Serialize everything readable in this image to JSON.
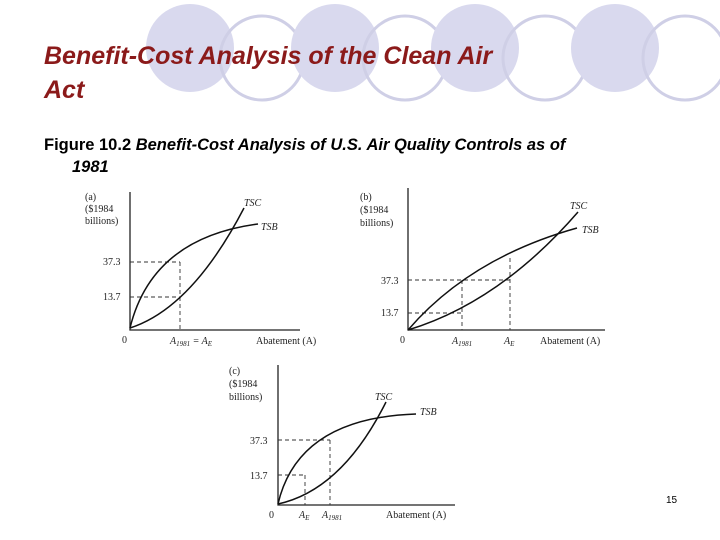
{
  "header": {
    "title": "Benefit-Cost Analysis of the Clean Air Act"
  },
  "figure": {
    "caption_number": "Figure 10.2",
    "caption": "Benefit-Cost Analysis of U.S. Air Quality Controls as of 1981",
    "panels": [
      {
        "label": "(a)",
        "y_axis_label": [
          "($1984",
          "billions)"
        ],
        "origin": "0",
        "y_ticks": [
          "37.3",
          "13.7"
        ],
        "curves": [
          "TSC",
          "TSB"
        ],
        "x_axis_label": "Abatement (A)",
        "x_ticks": [
          {
            "text": "A",
            "sub": "1981"
          },
          {
            "text": " = A",
            "sub": "E"
          }
        ]
      },
      {
        "label": "(b)",
        "y_axis_label": [
          "($1984",
          "billions)"
        ],
        "origin": "0",
        "y_ticks": [
          "37.3",
          "13.7"
        ],
        "curves": [
          "TSC",
          "TSB"
        ],
        "x_axis_label": "Abatement (A)",
        "x_ticks": [
          {
            "text": "A",
            "sub": "1981"
          },
          {
            "text": "A",
            "sub": "E"
          }
        ]
      },
      {
        "label": "(c)",
        "y_axis_label": [
          "($1984",
          "billions)"
        ],
        "origin": "0",
        "y_ticks": [
          "37.3",
          "13.7"
        ],
        "curves": [
          "TSC",
          "TSB"
        ],
        "x_axis_label": "Abatement (A)",
        "x_ticks": [
          {
            "text": "A",
            "sub": "E"
          },
          {
            "text": "A",
            "sub": "1981"
          }
        ]
      }
    ]
  },
  "page_number": "15"
}
